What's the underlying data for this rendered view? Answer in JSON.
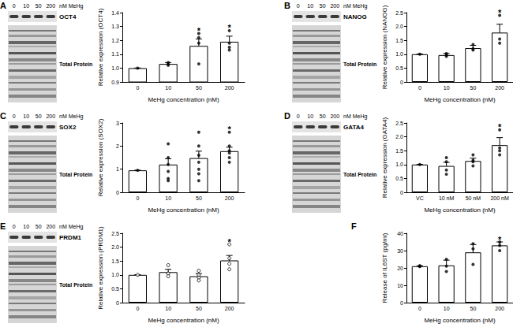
{
  "chart_data": [
    {
      "type": "bar",
      "panel": "A",
      "blot": {
        "lanes": [
          "0",
          "10",
          "50",
          "200"
        ],
        "unit": "nM MeHg",
        "protein": "OCT4",
        "total": "Total Protein"
      },
      "y_label": "Relative expression (OCT4)",
      "x_label": "MeHg concentration (nM)",
      "categories": [
        "0",
        "10",
        "50",
        "200"
      ],
      "values": [
        1.0,
        1.03,
        1.16,
        1.19
      ],
      "errors": [
        0,
        0.01,
        0.05,
        0.04
      ],
      "points": [
        [
          1.0
        ],
        [
          1.02,
          1.03,
          1.04
        ],
        [
          1.25,
          1.22,
          1.18,
          1.03
        ],
        [
          1.27,
          1.18,
          1.15,
          1.13
        ]
      ],
      "marker": "circle",
      "color": "#ffffff",
      "ylim": [
        0.9,
        1.4
      ],
      "yticks": [
        0.9,
        {
          "value": 1,
          "label": "1.0"
        },
        1.1,
        1.2,
        1.3,
        1.4
      ],
      "annotations": [
        {
          "category": "50",
          "text": "*"
        },
        {
          "category": "200",
          "text": "*"
        }
      ],
      "grid": false
    },
    {
      "type": "bar",
      "panel": "B",
      "blot": {
        "lanes": [
          "0",
          "10",
          "50",
          "200"
        ],
        "unit": "nM MeHg",
        "protein": "NANOG",
        "total": "Total Protein"
      },
      "y_label": "Relative expression (NANOG)",
      "x_label": "MeHg concentration (nM)",
      "categories": [
        "0",
        "10",
        "50",
        "200"
      ],
      "values": [
        1.0,
        0.97,
        1.22,
        1.78
      ],
      "errors": [
        0,
        0.06,
        0.1,
        0.3
      ],
      "points": [
        [
          1.0
        ],
        [
          1.02,
          0.92,
          0.97
        ],
        [
          1.35,
          1.2,
          1.15
        ],
        [
          2.4,
          1.55,
          1.4
        ]
      ],
      "marker": "circle",
      "color": "#ffffff",
      "ylim": [
        0,
        2.5
      ],
      "yticks": [
        0,
        0.5,
        {
          "value": 1,
          "label": "1.0"
        },
        1.5,
        {
          "value": 2,
          "label": "2.0"
        },
        2.5
      ],
      "annotations": [
        {
          "category": "200",
          "text": "*"
        }
      ],
      "grid": false
    },
    {
      "type": "bar",
      "panel": "C",
      "blot": {
        "lanes": [
          "0",
          "10",
          "50",
          "200"
        ],
        "unit": "nM MeHg",
        "protein": "SOX2",
        "total": "Total Protein"
      },
      "y_label": "Relative expression (SOX2)",
      "x_label": "MeHg concentration (nM)",
      "categories": [
        "0",
        "10",
        "50",
        "200"
      ],
      "values": [
        0.95,
        1.2,
        1.48,
        1.78
      ],
      "errors": [
        0,
        0.25,
        0.3,
        0.17
      ],
      "points": [
        [
          0.95
        ],
        [
          2.1,
          1.5,
          1.2,
          0.9,
          0.6,
          0.5
        ],
        [
          2.6,
          2.0,
          1.6,
          1.3,
          1.0,
          0.8,
          0.5
        ],
        [
          2.6,
          2.0,
          1.8,
          1.7,
          1.5,
          1.3
        ]
      ],
      "marker": "circle",
      "color": "#ffffff",
      "ylim": [
        0,
        3
      ],
      "yticks": [
        0,
        1,
        2,
        3
      ],
      "annotations": [
        {
          "category": "200",
          "text": "*"
        }
      ],
      "grid": false
    },
    {
      "type": "bar",
      "panel": "D",
      "blot": {
        "lanes": [
          "0",
          "10",
          "50",
          "200"
        ],
        "unit": "nM MeHg",
        "protein": "GATA4",
        "total": "Total Protein"
      },
      "y_label": "Relative expression (GATA4)",
      "x_label": "MeHg concentration (nM)",
      "categories": [
        "VC",
        "10 nM",
        "50 nM",
        "200 nM"
      ],
      "values": [
        1.0,
        0.95,
        1.13,
        1.7
      ],
      "errors": [
        0,
        0.13,
        0.1,
        0.27
      ],
      "points": [
        [
          1.0
        ],
        [
          1.25,
          1.1,
          0.8,
          0.65
        ],
        [
          1.35,
          1.15,
          1.1,
          0.95
        ],
        [
          2.25,
          1.6,
          1.5,
          1.35
        ]
      ],
      "marker": "circle",
      "color": "#ffffff",
      "ylim": [
        0,
        2.5
      ],
      "yticks": [
        0,
        0.5,
        {
          "value": 1,
          "label": "1.0"
        },
        1.5,
        {
          "value": 2,
          "label": "2.0"
        },
        2.5
      ],
      "annotations": [
        {
          "category": "200 nM",
          "text": "*"
        }
      ],
      "grid": false
    },
    {
      "type": "bar",
      "panel": "E",
      "blot": {
        "lanes": [
          "0",
          "10",
          "50",
          "200"
        ],
        "unit": "nM MeHg",
        "protein": "PRDM1",
        "total": "Total Protein"
      },
      "y_label": "Relative expression (PRDM1)",
      "x_label": "MeHg concentration (nM)",
      "categories": [
        "0",
        "10",
        "50",
        "200"
      ],
      "values": [
        1.0,
        1.1,
        0.95,
        1.52
      ],
      "errors": [
        0,
        0.1,
        0.1,
        0.18
      ],
      "points": [
        [
          1.0
        ],
        [
          1.35,
          1.05,
          0.95
        ],
        [
          1.15,
          1.0,
          0.9,
          0.8
        ],
        [
          2.1,
          1.6,
          1.4,
          1.2
        ]
      ],
      "marker": "open_circle",
      "color": "#ffffff",
      "ylim": [
        0,
        2.5
      ],
      "yticks": [
        0,
        0.5,
        {
          "value": 1,
          "label": "1.0"
        },
        1.5,
        {
          "value": 2,
          "label": "2.0"
        },
        2.5
      ],
      "annotations": [
        {
          "category": "200",
          "text": "*"
        }
      ],
      "grid": false
    },
    {
      "type": "bar",
      "panel": "F",
      "y_label": "Release of IL6ST (pg/ml)",
      "x_label": "MeHg concentration (nM)",
      "categories": [
        "0",
        "10",
        "50",
        "200"
      ],
      "values": [
        21,
        21.5,
        29,
        33
      ],
      "errors": [
        0.3,
        3,
        4.5,
        2
      ],
      "points": [
        [
          21.3,
          21,
          20.8
        ],
        [
          25,
          21,
          18
        ],
        [
          34,
          31,
          22
        ],
        [
          35,
          33,
          30
        ]
      ],
      "marker": "circle",
      "color": "#ffffff",
      "ylim": [
        0,
        40
      ],
      "yticks": [
        0,
        10,
        20,
        30,
        40
      ],
      "annotations": [
        {
          "category": "200",
          "text": "*"
        }
      ],
      "grid": false
    }
  ]
}
